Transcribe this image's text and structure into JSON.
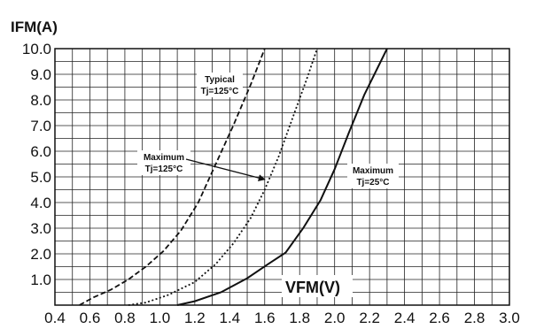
{
  "chart_data": {
    "type": "line",
    "ylabel": "IFM(A)",
    "xlabel": "VFM(V)",
    "xlim": [
      0.4,
      3.0
    ],
    "ylim": [
      0,
      10
    ],
    "x_ticks": [
      "0.4",
      "0.6",
      "0.8",
      "1.0",
      "1.2",
      "1.4",
      "1.6",
      "1.8",
      "2.0",
      "2.2",
      "2.4",
      "2.6",
      "2.8",
      "3.0"
    ],
    "y_ticks": [
      "1.0",
      "2.0",
      "3.0",
      "4.0",
      "5.0",
      "6.0",
      "7.0",
      "8.0",
      "9.0",
      "10.0"
    ],
    "grid": true,
    "series": [
      {
        "name": "Typical Tj=125°C",
        "style": "dashed",
        "color": "#111111",
        "points": [
          [
            0.54,
            0.0
          ],
          [
            0.62,
            0.3
          ],
          [
            0.72,
            0.6
          ],
          [
            0.82,
            1.0
          ],
          [
            0.92,
            1.5
          ],
          [
            1.02,
            2.1
          ],
          [
            1.12,
            2.9
          ],
          [
            1.22,
            4.0
          ],
          [
            1.32,
            5.5
          ],
          [
            1.42,
            7.0
          ],
          [
            1.52,
            8.6
          ],
          [
            1.6,
            10.0
          ]
        ]
      },
      {
        "name": "Maximum Tj=125°C",
        "style": "dotted",
        "color": "#111111",
        "points": [
          [
            0.82,
            0.0
          ],
          [
            0.92,
            0.1
          ],
          [
            1.05,
            0.4
          ],
          [
            1.2,
            0.9
          ],
          [
            1.32,
            1.6
          ],
          [
            1.42,
            2.4
          ],
          [
            1.52,
            3.4
          ],
          [
            1.6,
            4.5
          ],
          [
            1.68,
            5.8
          ],
          [
            1.76,
            7.3
          ],
          [
            1.84,
            8.8
          ],
          [
            1.9,
            10.0
          ]
        ]
      },
      {
        "name": "Maximum Tj=25°C",
        "style": "solid",
        "color": "#111111",
        "points": [
          [
            1.1,
            0.0
          ],
          [
            1.2,
            0.15
          ],
          [
            1.35,
            0.5
          ],
          [
            1.5,
            1.05
          ],
          [
            1.62,
            1.6
          ],
          [
            1.72,
            2.05
          ],
          [
            1.82,
            3.0
          ],
          [
            1.92,
            4.1
          ],
          [
            2.0,
            5.3
          ],
          [
            2.08,
            6.7
          ],
          [
            2.17,
            8.2
          ],
          [
            2.3,
            10.0
          ]
        ]
      }
    ],
    "annotations": [
      {
        "lines": [
          "Typical",
          "Tj=125°C"
        ]
      },
      {
        "lines": [
          "Maximum",
          "Tj=125°C"
        ]
      },
      {
        "lines": [
          "Maximum",
          "Tj=25°C"
        ]
      }
    ]
  }
}
